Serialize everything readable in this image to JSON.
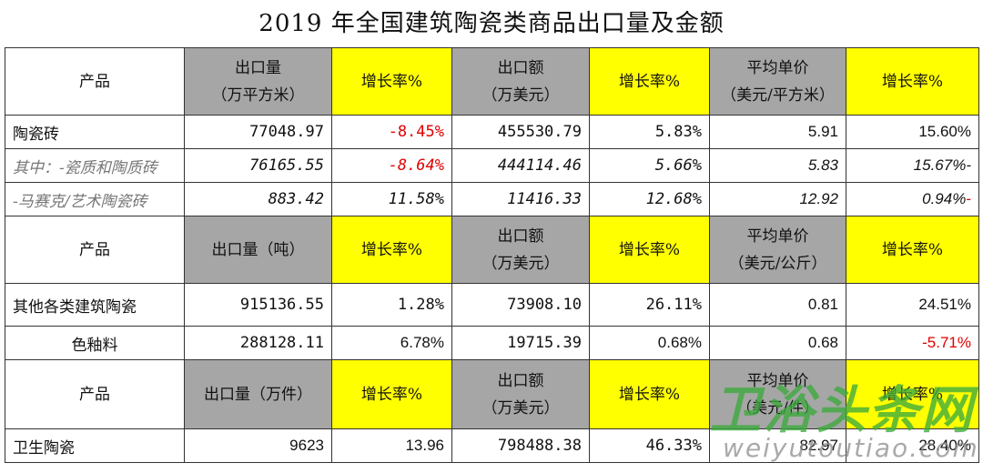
{
  "title": "2019 年全国建筑陶瓷类商品出口量及金额",
  "section1": {
    "product": "产品",
    "qty": [
      "出口量",
      "（万平方米）"
    ],
    "qty_growth": "增长率%",
    "amt": [
      "出口额",
      "（万美元）"
    ],
    "amt_growth": "增长率%",
    "price": [
      "平均单价",
      "（美元/平方米）"
    ],
    "price_growth": "增长率%",
    "rows": [
      {
        "name": "陶瓷砖",
        "qty": "77048.97",
        "qty_growth": "-8.45%",
        "amt": "455530.79",
        "amt_growth": "5.83%",
        "price": "5.91",
        "price_growth": "15.60%",
        "suffix": ""
      },
      {
        "name": "其中：-瓷质和陶质砖",
        "qty": "76165.55",
        "qty_growth": "-8.64%",
        "amt": "444114.46",
        "amt_growth": "5.66%",
        "price": "5.83",
        "price_growth": "15.67%",
        "suffix": "-"
      },
      {
        "name": "-马赛克/艺术陶瓷砖",
        "qty": "883.42",
        "qty_growth": "11.58%",
        "amt": "11416.33",
        "amt_growth": "12.68%",
        "price": "12.92",
        "price_growth": "0.94%",
        "suffix": "-"
      }
    ]
  },
  "section2": {
    "product": "产品",
    "qty": "出口量（吨）",
    "qty_growth": "增长率%",
    "amt": [
      "出口额",
      "（万美元）"
    ],
    "amt_growth": "增长率%",
    "price": [
      "平均单价",
      "（美元/公斤）"
    ],
    "price_growth": "增长率%",
    "rows": [
      {
        "name": "其他各类建筑陶瓷",
        "qty": "915136.55",
        "qty_growth": "1.28%",
        "amt": "73908.10",
        "amt_growth": "26.11%",
        "price": "0.81",
        "price_growth": "24.51%"
      },
      {
        "name": "色釉料",
        "qty": "288128.11",
        "qty_growth": "6.78%",
        "amt": "19715.39",
        "amt_growth": "0.68%",
        "price": "0.68",
        "price_growth": "-5.71%"
      }
    ]
  },
  "section3": {
    "product": "产品",
    "qty": "出口量（万件）",
    "qty_growth": "增长率%",
    "amt": [
      "出口额",
      "（万美元）"
    ],
    "amt_growth": "增长率%",
    "price": [
      "平均单价",
      "（美元/件）"
    ],
    "price_growth": "增长率%",
    "rows": [
      {
        "name": "卫生陶瓷",
        "qty": "9623",
        "qty_growth": "13.96",
        "amt": "798488.38",
        "amt_growth": "46.33%",
        "price": "82.97",
        "price_growth": "28.40%"
      }
    ]
  },
  "watermark": {
    "main": "卫浴头条网",
    "sub": "weiyutoutiao.com",
    "color": "#3caa3c"
  },
  "colors": {
    "header_gray": "#a6a6a6",
    "header_yellow": "#ffff00",
    "negative_red": "#e00000"
  }
}
